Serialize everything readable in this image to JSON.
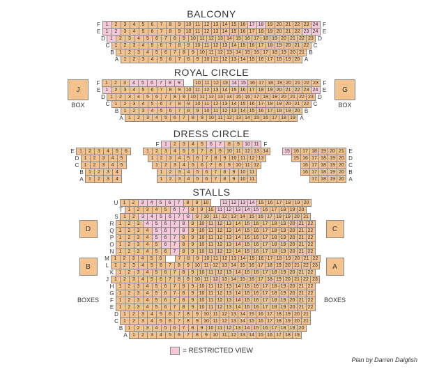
{
  "colors": {
    "normal": "#f4c28c",
    "restricted": "#f5c9d9",
    "border": "#888888",
    "background": "#ffffff",
    "text": "#333333"
  },
  "seat_size": {
    "w": 14,
    "h": 11
  },
  "sections": {
    "balcony": {
      "title": "BALCONY",
      "rows": [
        {
          "label": "F",
          "seats": 24,
          "restricted": [
            1,
            17,
            18,
            24
          ],
          "gap_after": null
        },
        {
          "label": "E",
          "seats": 24,
          "restricted": [
            1,
            2,
            23,
            24
          ],
          "gap_after": null
        },
        {
          "label": "D",
          "seats": 23,
          "restricted": [
            1
          ],
          "gap_after": null
        },
        {
          "label": "C",
          "seats": 22,
          "restricted": [],
          "gap_after": null
        },
        {
          "label": "B",
          "seats": 21,
          "restricted": [],
          "gap_after": null
        },
        {
          "label": "A",
          "seats": 20,
          "restricted": [],
          "gap_after": null
        }
      ]
    },
    "royal_circle": {
      "title": "ROYAL CIRCLE",
      "boxes_left": {
        "label": "J",
        "caption": "BOX"
      },
      "boxes_right": {
        "label": "G",
        "caption": "BOX"
      },
      "rows": [
        {
          "label": "F",
          "seats": 23,
          "restricted": [
            4,
            5,
            6,
            7,
            8,
            9,
            14,
            15
          ],
          "gap_after": [
            9
          ]
        },
        {
          "label": "E",
          "seats": 24,
          "restricted": [
            1,
            24
          ],
          "gap_after": null
        },
        {
          "label": "D",
          "seats": 23,
          "restricted": [],
          "gap_after": null
        },
        {
          "label": "C",
          "seats": 22,
          "restricted": [],
          "gap_after": null
        },
        {
          "label": "B",
          "seats": 20,
          "restricted": [],
          "gap_after": null
        },
        {
          "label": "A",
          "seats": 19,
          "restricted": [],
          "gap_after": null
        }
      ]
    },
    "dress_circle": {
      "title": "DRESS CIRCLE",
      "row_f": {
        "label": "F",
        "seats": 11,
        "restricted": [
          1,
          6,
          7,
          10,
          11
        ]
      },
      "left": [
        {
          "label": "E",
          "seats": 6,
          "restricted": []
        },
        {
          "label": "D",
          "seats": 5,
          "restricted": []
        },
        {
          "label": "C",
          "seats": 5,
          "restricted": []
        },
        {
          "label": "B",
          "seats": 4,
          "restricted": []
        },
        {
          "label": "A",
          "seats": 4,
          "restricted": []
        }
      ],
      "center": [
        {
          "label": "",
          "seats": 14,
          "restricted": []
        },
        {
          "label": "",
          "seats": 13,
          "restricted": []
        },
        {
          "label": "",
          "seats": 12,
          "restricted": []
        },
        {
          "label": "",
          "seats": 11,
          "restricted": []
        },
        {
          "label": "",
          "seats": 11,
          "restricted": []
        }
      ],
      "right": [
        {
          "label": "E",
          "seats": 7,
          "start": 15,
          "restricted": [
            15
          ]
        },
        {
          "label": "D",
          "seats": 6,
          "start": 15,
          "restricted": []
        },
        {
          "label": "C",
          "seats": 5,
          "start": 16,
          "restricted": []
        },
        {
          "label": "B",
          "seats": 5,
          "start": 16,
          "restricted": []
        },
        {
          "label": "A",
          "seats": 4,
          "start": 17,
          "restricted": []
        }
      ]
    },
    "stalls": {
      "title": "STALLS",
      "boxes_left": [
        {
          "label": "D",
          "caption": ""
        },
        {
          "label": "B",
          "caption": ""
        }
      ],
      "boxes_right": [
        {
          "label": "C",
          "caption": ""
        },
        {
          "label": "A",
          "caption": ""
        }
      ],
      "boxes_caption": "BOXES",
      "rows": [
        {
          "label": "U",
          "seats": 20,
          "restricted": [
            3,
            4,
            5,
            6,
            7,
            11,
            12,
            13,
            14
          ],
          "gap_after": [
            10
          ]
        },
        {
          "label": "T",
          "seats": 20,
          "restricted": [
            6,
            7,
            11,
            12,
            13,
            14,
            15
          ],
          "gap_after": null
        },
        {
          "label": "S",
          "seats": 21,
          "restricted": [
            3,
            4,
            5,
            6,
            7,
            8
          ],
          "gap_after": null
        },
        {
          "label": "R",
          "seats": 22,
          "restricted": [
            4,
            5,
            6,
            7,
            8
          ],
          "gap_after": null
        },
        {
          "label": "Q",
          "seats": 22,
          "restricted": [
            5,
            6,
            7,
            8
          ],
          "gap_after": null
        },
        {
          "label": "P",
          "seats": 22,
          "restricted": [
            5,
            6,
            7
          ],
          "gap_after": null
        },
        {
          "label": "O",
          "seats": 22,
          "restricted": [
            6,
            7
          ],
          "gap_after": null
        },
        {
          "label": "N",
          "seats": 22,
          "restricted": [
            7
          ],
          "gap_after": null
        },
        {
          "label": "M",
          "seats": 22,
          "restricted": [],
          "gap_after": [
            6
          ]
        },
        {
          "label": "L",
          "seats": 23,
          "restricted": [],
          "gap_after": null
        },
        {
          "label": "K",
          "seats": 22,
          "restricted": [],
          "gap_after": null
        },
        {
          "label": "J",
          "seats": 23,
          "restricted": [],
          "gap_after": null
        },
        {
          "label": "H",
          "seats": 22,
          "restricted": [],
          "gap_after": null
        },
        {
          "label": "G",
          "seats": 22,
          "restricted": [],
          "gap_after": null
        },
        {
          "label": "F",
          "seats": 22,
          "restricted": [],
          "gap_after": null
        },
        {
          "label": "E",
          "seats": 22,
          "restricted": [],
          "gap_after": null
        },
        {
          "label": "D",
          "seats": 21,
          "restricted": [],
          "gap_after": null
        },
        {
          "label": "C",
          "seats": 21,
          "restricted": [],
          "gap_after": null
        },
        {
          "label": "B",
          "seats": 20,
          "restricted": [],
          "gap_after": null
        },
        {
          "label": "A",
          "seats": 19,
          "restricted": [],
          "gap_after": null
        }
      ]
    }
  },
  "legend": "= RESTRICTED VIEW",
  "credit": "Plan by Darren Dalglish"
}
